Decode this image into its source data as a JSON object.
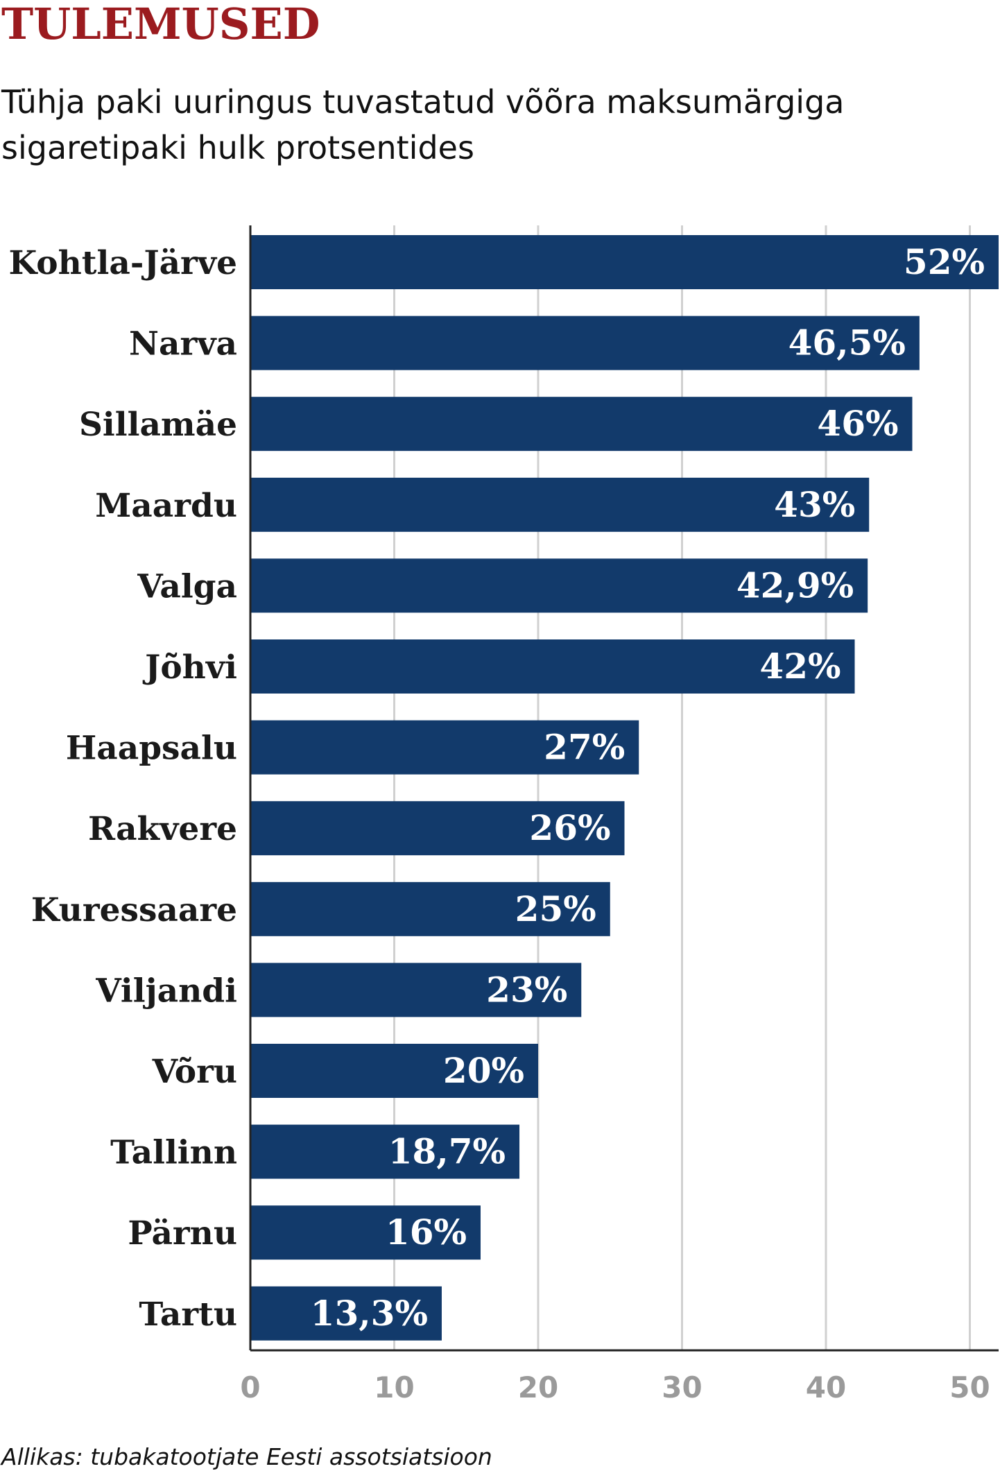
{
  "chart_data": {
    "type": "bar",
    "orientation": "horizontal",
    "title": "TULEMUSED",
    "subtitle_lines": [
      "Tühja paki uuringus tuvastatud võõra maksumärgiga",
      "sigaretipaki hulk protsentides"
    ],
    "categories": [
      "Kohtla-Järve",
      "Narva",
      "Sillamäe",
      "Maardu",
      "Valga",
      "Jõhvi",
      "Haapsalu",
      "Rakvere",
      "Kuressaare",
      "Viljandi",
      "Võru",
      "Tallinn",
      "Pärnu",
      "Tartu"
    ],
    "values": [
      52,
      46.5,
      46,
      43,
      42.9,
      42,
      27,
      26,
      25,
      23,
      20,
      18.7,
      16,
      13.3
    ],
    "value_labels": [
      "52%",
      "46,5%",
      "46%",
      "43%",
      "42,9%",
      "42%",
      "27%",
      "26%",
      "25%",
      "23%",
      "20%",
      "18,7%",
      "16%",
      "13,3%"
    ],
    "xticks": [
      "0",
      "10",
      "20",
      "30",
      "40",
      "50"
    ],
    "xlim": [
      0,
      52
    ],
    "grid": true,
    "bar_color": "#123a6b",
    "title_color": "#9b1b1f",
    "source": "Allikas: tubakatootjate Eesti assotsiatsioon"
  }
}
